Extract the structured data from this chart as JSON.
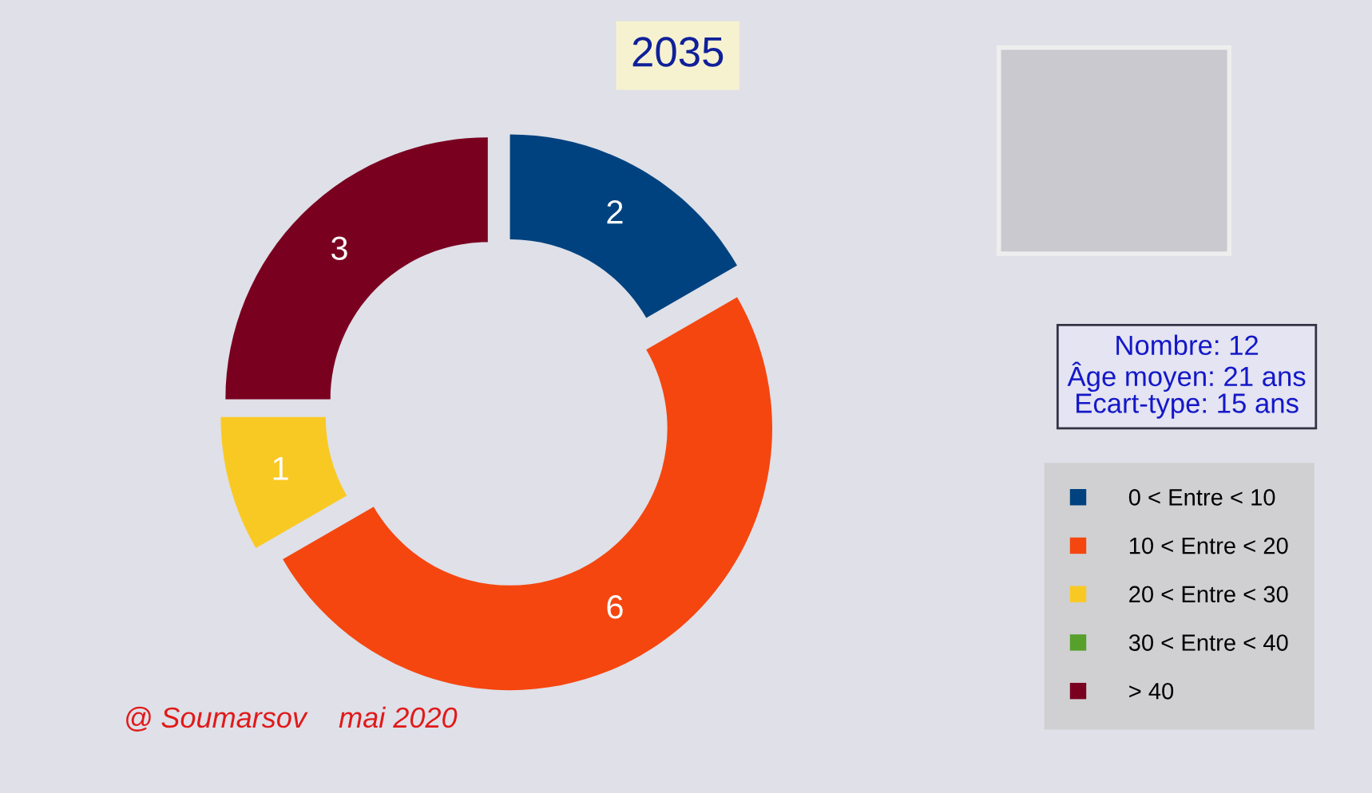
{
  "chart_data": {
    "type": "donut",
    "title": "2035",
    "categories": [
      "0 < Entre < 10",
      "10 < Entre < 20",
      "20 < Entre < 30",
      "30 < Entre < 40",
      "> 40"
    ],
    "values": [
      2,
      6,
      1,
      0,
      3
    ],
    "colors": [
      "#00427f",
      "#f5460f",
      "#f9c923",
      "#57a02c",
      "#7a0020"
    ],
    "value_labels": [
      "2",
      "6",
      "1",
      null,
      "3"
    ],
    "legend": "right",
    "annotations": [
      "Nombre: 12\nÂge moyen: 21 ans\nEcart-type: 15 ans",
      "@ Soumarsov    mai 2020"
    ]
  }
}
